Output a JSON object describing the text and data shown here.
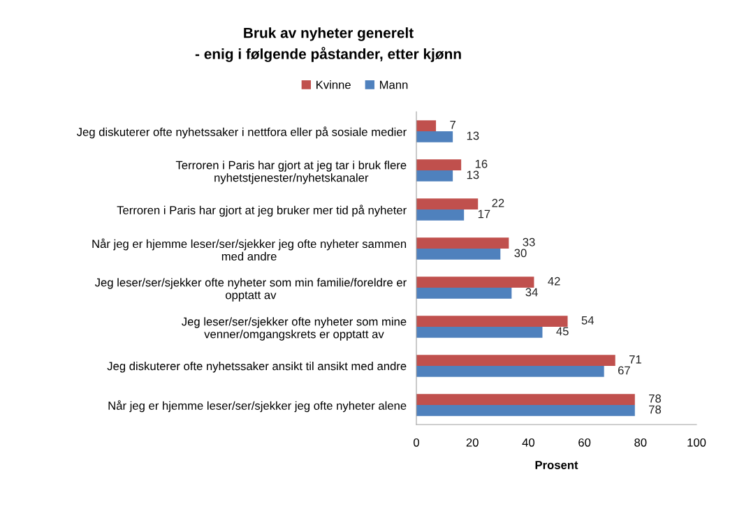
{
  "chart_data": {
    "type": "bar",
    "orientation": "horizontal",
    "title": "Bruk av nyheter generelt\n- enig i følgende påstander, etter kjønn",
    "xlabel": "Prosent",
    "categories": [
      "Jeg diskuterer ofte nyhetssaker i nettfora eller på sosiale medier",
      "Terroren i Paris har gjort at jeg tar i bruk flere\nnyhetstjenester/nyhetskanaler",
      "Terroren i Paris har gjort at jeg bruker mer tid på nyheter",
      "Når jeg er hjemme leser/ser/sjekker jeg ofte nyheter sammen\nmed andre",
      "Jeg leser/ser/sjekker ofte nyheter som min familie/foreldre er\nopptatt av",
      "Jeg leser/ser/sjekker ofte nyheter som mine\nvenner/omgangskrets er opptatt av",
      "Jeg diskuterer ofte nyhetssaker ansikt til ansikt med andre",
      "Når jeg er hjemme leser/ser/sjekker jeg ofte nyheter alene"
    ],
    "series": [
      {
        "name": "Kvinne",
        "color": "#c0504d",
        "values": [
          7,
          16,
          22,
          33,
          42,
          54,
          71,
          78
        ]
      },
      {
        "name": "Mann",
        "color": "#4f81bd",
        "values": [
          13,
          13,
          17,
          30,
          34,
          45,
          67,
          78
        ]
      }
    ],
    "xlim": [
      0,
      100
    ],
    "xticks": [
      0,
      20,
      40,
      60,
      80,
      100
    ],
    "data_labels": true,
    "legend": "top",
    "grid": false
  }
}
